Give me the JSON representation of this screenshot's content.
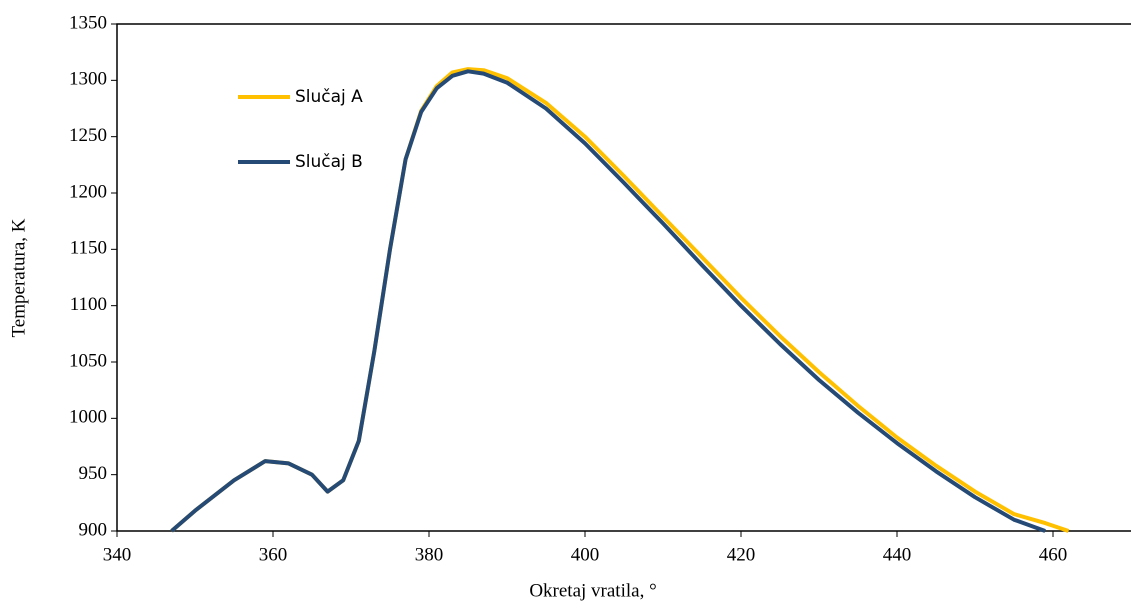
{
  "chart_data": {
    "type": "line",
    "x_label": "Okretaj vratila, °",
    "y_label": "Temperatura, K",
    "x": [
      347,
      350,
      355,
      359,
      362,
      365,
      367,
      369,
      371,
      373,
      375,
      377,
      379,
      381,
      383,
      385,
      387,
      390,
      395,
      400,
      405,
      410,
      415,
      420,
      425,
      430,
      435,
      440,
      445,
      450,
      455,
      459,
      462
    ],
    "series": [
      {
        "name": "Slučaj A",
        "color": "#ffc000",
        "values": [
          900,
          918,
          945,
          962,
          960,
          950,
          935,
          945,
          980,
          1060,
          1150,
          1230,
          1273,
          1295,
          1307,
          1310,
          1309,
          1302,
          1280,
          1250,
          1215,
          1179,
          1143,
          1107,
          1073,
          1041,
          1011,
          983,
          958,
          935,
          915,
          907,
          900
        ]
      },
      {
        "name": "Slučaj B",
        "color": "#254a75",
        "values": [
          900,
          918,
          945,
          962,
          960,
          950,
          935,
          945,
          980,
          1060,
          1150,
          1230,
          1272,
          1293,
          1304,
          1308,
          1306,
          1298,
          1275,
          1244,
          1209,
          1173,
          1136,
          1100,
          1066,
          1034,
          1005,
          978,
          953,
          930,
          910,
          900,
          null
        ]
      }
    ],
    "xlim": [
      340,
      470
    ],
    "xticks": [
      340,
      360,
      380,
      400,
      420,
      440,
      460
    ],
    "ylim": [
      900,
      1350
    ],
    "yticks": [
      900,
      950,
      1000,
      1050,
      1100,
      1150,
      1200,
      1250,
      1300,
      1350
    ],
    "grid": false,
    "legend": "upper left"
  }
}
